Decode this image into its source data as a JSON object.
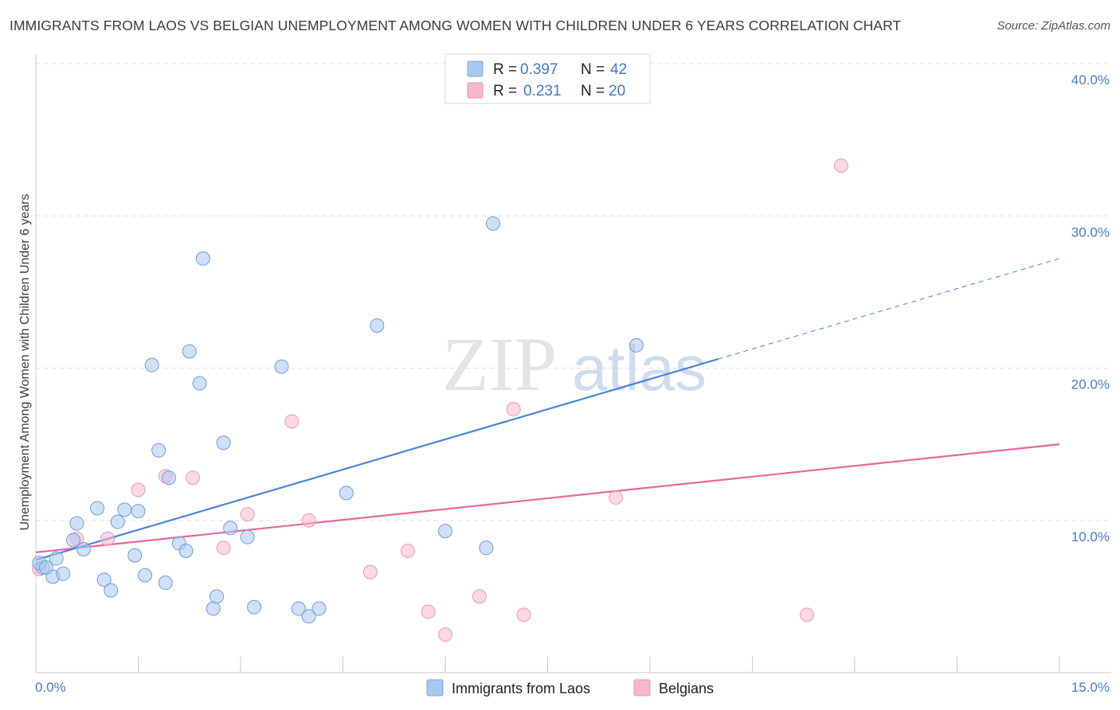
{
  "title": "IMMIGRANTS FROM LAOS VS BELGIAN UNEMPLOYMENT AMONG WOMEN WITH CHILDREN UNDER 6 YEARS CORRELATION CHART",
  "source": "Source: ZipAtlas.com",
  "watermark": {
    "zip": "ZIP",
    "atlas": "atlas"
  },
  "legend": {
    "rows": [
      {
        "r_label": "R =",
        "r_value": "0.397",
        "n_label": "N =",
        "n_value": "42",
        "color": "#a9c8f0"
      },
      {
        "r_label": "R =",
        "r_value": "0.231",
        "n_label": "N =",
        "n_value": "20",
        "color": "#f7b8cb"
      }
    ]
  },
  "bottom_legend": [
    {
      "label": "Immigrants from Laos",
      "color": "#a9c8f0"
    },
    {
      "label": "Belgians",
      "color": "#f7b8cb"
    }
  ],
  "chart_data": {
    "type": "scatter",
    "title": "IMMIGRANTS FROM LAOS VS BELGIAN UNEMPLOYMENT AMONG WOMEN WITH CHILDREN UNDER 6 YEARS CORRELATION CHART",
    "xlabel": "",
    "ylabel": "Unemployment Among Women with Children Under 6 years",
    "xlim": [
      0,
      15
    ],
    "ylim": [
      0,
      40
    ],
    "x_tick_labels": [
      "0.0%",
      "15.0%"
    ],
    "y_ticks": [
      10,
      20,
      30,
      40
    ],
    "y_tick_labels": [
      "10.0%",
      "20.0%",
      "30.0%",
      "40.0%"
    ],
    "grid": "horizontal dashed",
    "legend_position": "top-center",
    "series": [
      {
        "name": "Immigrants from Laos",
        "color": "#4a86d8",
        "fill": "#a9c8f0",
        "points": [
          [
            0.1,
            6.9
          ],
          [
            0.25,
            6.3
          ],
          [
            0.3,
            7.5
          ],
          [
            0.4,
            6.5
          ],
          [
            0.55,
            8.7
          ],
          [
            0.7,
            8.1
          ],
          [
            0.6,
            9.8
          ],
          [
            0.9,
            10.8
          ],
          [
            1.0,
            6.1
          ],
          [
            1.1,
            5.4
          ],
          [
            1.2,
            9.9
          ],
          [
            1.3,
            10.7
          ],
          [
            1.45,
            7.7
          ],
          [
            1.5,
            10.6
          ],
          [
            1.6,
            6.4
          ],
          [
            1.7,
            20.2
          ],
          [
            1.8,
            14.6
          ],
          [
            1.9,
            5.9
          ],
          [
            1.95,
            12.8
          ],
          [
            2.1,
            8.5
          ],
          [
            2.2,
            8.0
          ],
          [
            2.25,
            21.1
          ],
          [
            2.4,
            19.0
          ],
          [
            2.45,
            27.2
          ],
          [
            2.6,
            4.2
          ],
          [
            2.65,
            5.0
          ],
          [
            2.75,
            15.1
          ],
          [
            2.85,
            9.5
          ],
          [
            3.1,
            8.9
          ],
          [
            3.2,
            4.3
          ],
          [
            3.6,
            20.1
          ],
          [
            3.85,
            4.2
          ],
          [
            4.0,
            3.7
          ],
          [
            4.15,
            4.2
          ],
          [
            4.55,
            11.8
          ],
          [
            5.0,
            22.8
          ],
          [
            6.0,
            9.3
          ],
          [
            6.6,
            8.2
          ],
          [
            6.7,
            29.5
          ],
          [
            8.8,
            21.5
          ],
          [
            0.05,
            7.2
          ],
          [
            0.15,
            6.9
          ]
        ],
        "trend": {
          "x": [
            0,
            10.0
          ],
          "y": [
            7.4,
            20.6
          ],
          "dashed_extension": {
            "x": [
              10.0,
              15.0
            ],
            "y": [
              20.6,
              27.2
            ]
          }
        }
      },
      {
        "name": "Belgians",
        "color": "#e8689a",
        "fill": "#f7b8cb",
        "points": [
          [
            0.05,
            6.8
          ],
          [
            0.6,
            8.8
          ],
          [
            1.05,
            8.8
          ],
          [
            1.5,
            12.0
          ],
          [
            1.9,
            12.9
          ],
          [
            2.3,
            12.8
          ],
          [
            2.75,
            8.2
          ],
          [
            3.1,
            10.4
          ],
          [
            3.75,
            16.5
          ],
          [
            4.0,
            10.0
          ],
          [
            4.9,
            6.6
          ],
          [
            5.45,
            8.0
          ],
          [
            5.75,
            4.0
          ],
          [
            6.0,
            2.5
          ],
          [
            6.5,
            5.0
          ],
          [
            7.0,
            17.3
          ],
          [
            7.15,
            3.8
          ],
          [
            8.5,
            11.5
          ],
          [
            11.3,
            3.8
          ],
          [
            11.8,
            33.3
          ]
        ],
        "trend": {
          "x": [
            0,
            15.0
          ],
          "y": [
            7.9,
            15.0
          ]
        }
      }
    ]
  }
}
